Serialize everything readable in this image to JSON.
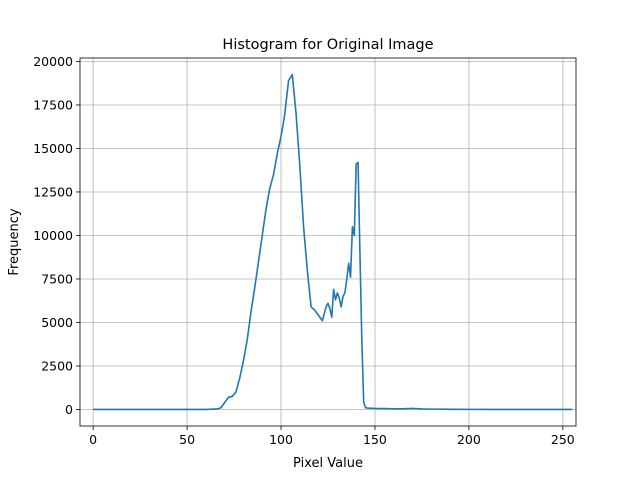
{
  "chart_data": {
    "type": "line",
    "title": "Histogram for Original Image",
    "xlabel": "Pixel Value",
    "ylabel": "Frequency",
    "xlim": [
      -7,
      257
    ],
    "ylim": [
      -950,
      20200
    ],
    "grid": true,
    "legend": "none",
    "color": "#1f77b4",
    "xticks": [
      0,
      50,
      100,
      150,
      200,
      250
    ],
    "xtick_labels": [
      "0",
      "50",
      "100",
      "150",
      "200",
      "250"
    ],
    "yticks": [
      0,
      2500,
      5000,
      7500,
      10000,
      12500,
      15000,
      17500,
      20000
    ],
    "ytick_labels": [
      "0",
      "2500",
      "5000",
      "7500",
      "10000",
      "12500",
      "15000",
      "17500",
      "20000"
    ],
    "series": [
      {
        "x": [
          0,
          10,
          20,
          30,
          40,
          50,
          60,
          66,
          68,
          70,
          72,
          74,
          76,
          78,
          80,
          82,
          84,
          86,
          88,
          90,
          92,
          94,
          96,
          98,
          100,
          101,
          102,
          104,
          106,
          108,
          110,
          112,
          114,
          116,
          118,
          120,
          122,
          124,
          125,
          126,
          127,
          128,
          129,
          130,
          131,
          132,
          133,
          134,
          135,
          136,
          137,
          138,
          139,
          140,
          141,
          142,
          143,
          144,
          145,
          146,
          150,
          155,
          160,
          165,
          170,
          175,
          180,
          185,
          190,
          200,
          210,
          220,
          230,
          240,
          255
        ],
        "y": [
          0,
          0,
          0,
          0,
          0,
          0,
          0,
          30,
          100,
          400,
          700,
          750,
          1000,
          1800,
          2800,
          4000,
          5600,
          7000,
          8500,
          10000,
          11500,
          12700,
          13500,
          14700,
          15700,
          16300,
          17000,
          18900,
          19250,
          17000,
          14000,
          10500,
          8000,
          5900,
          5700,
          5400,
          5100,
          5900,
          6100,
          5800,
          5300,
          6900,
          6300,
          6700,
          6400,
          5900,
          6500,
          6700,
          7500,
          8400,
          7600,
          10500,
          10000,
          14100,
          14200,
          9000,
          4000,
          400,
          100,
          80,
          60,
          50,
          40,
          40,
          60,
          30,
          20,
          20,
          10,
          5,
          3,
          2,
          1,
          1,
          0
        ]
      }
    ]
  }
}
